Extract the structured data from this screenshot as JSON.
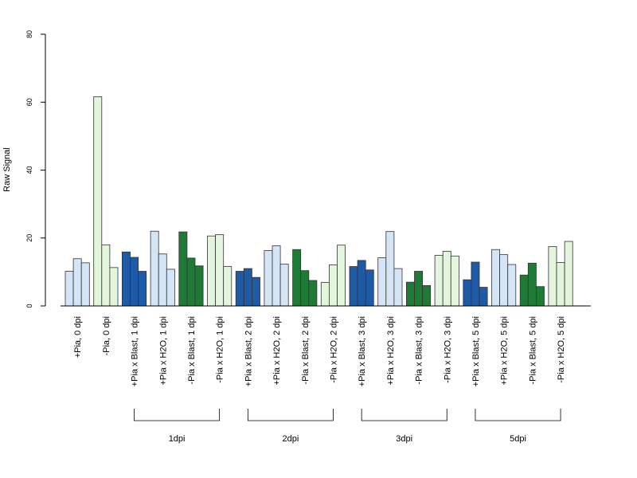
{
  "colors": {
    "pale_blue": "#d6e5f6",
    "dark_blue": "#1f5aa6",
    "dark_green": "#1f7a35",
    "pale_green": "#e3f6dd",
    "stroke": "#333333"
  },
  "chart_data": {
    "type": "bar",
    "ylabel": "Raw Signal",
    "ylim": [
      0,
      80
    ],
    "yticks": [
      0,
      20,
      40,
      60,
      80
    ],
    "grid": false,
    "categories": [
      "+Pia, 0 dpi",
      "-Pia, 0 dpi",
      "+Pia x Blast, 1 dpi",
      "+Pia x H2O, 1 dpi",
      "-Pia x Blast, 1 dpi",
      "-Pia x H2O, 1 dpi",
      "+Pia x Blast, 2 dpi",
      "+Pia x H2O, 2 dpi",
      "-Pia x Blast, 2 dpi",
      "-Pia x H2O, 2 dpi",
      "+Pia x Blast, 3 dpi",
      "+Pia x H2O, 3 dpi",
      "-Pia x Blast, 3 dpi",
      "-Pia x H2O, 3 dpi",
      "+Pia x Blast, 5 dpi",
      "+Pia x H2O, 5 dpi",
      "-Pia x Blast, 5 dpi",
      "-Pia x H2O, 5 dpi"
    ],
    "category_colors": [
      "pale_blue",
      "pale_green",
      "dark_blue",
      "pale_blue",
      "dark_green",
      "pale_green",
      "dark_blue",
      "pale_blue",
      "dark_green",
      "pale_green",
      "dark_blue",
      "pale_blue",
      "dark_green",
      "pale_green",
      "dark_blue",
      "pale_blue",
      "dark_green",
      "pale_green"
    ],
    "values": [
      [
        10.2,
        13.9,
        12.7
      ],
      [
        61.6,
        18.0,
        11.3
      ],
      [
        15.9,
        14.3,
        10.2
      ],
      [
        22.0,
        15.3,
        10.8
      ],
      [
        21.8,
        14.1,
        11.8
      ],
      [
        20.6,
        21.0,
        11.6
      ],
      [
        10.2,
        11.0,
        8.4
      ],
      [
        16.3,
        17.7,
        12.3
      ],
      [
        16.6,
        10.4,
        7.5
      ],
      [
        6.9,
        12.1,
        17.9
      ],
      [
        11.6,
        13.4,
        10.6
      ],
      [
        14.2,
        21.9,
        11.0
      ],
      [
        7.0,
        10.2,
        6.0
      ],
      [
        14.9,
        16.1,
        14.7
      ],
      [
        7.7,
        12.9,
        5.5
      ],
      [
        16.6,
        15.1,
        12.2
      ],
      [
        9.1,
        12.6,
        5.7
      ],
      [
        17.5,
        12.8,
        19.0
      ]
    ],
    "groups": [
      {
        "label": "1dpi",
        "from": 2,
        "to": 5
      },
      {
        "label": "2dpi",
        "from": 6,
        "to": 9
      },
      {
        "label": "3dpi",
        "from": 10,
        "to": 13
      },
      {
        "label": "5dpi",
        "from": 14,
        "to": 17
      }
    ]
  }
}
